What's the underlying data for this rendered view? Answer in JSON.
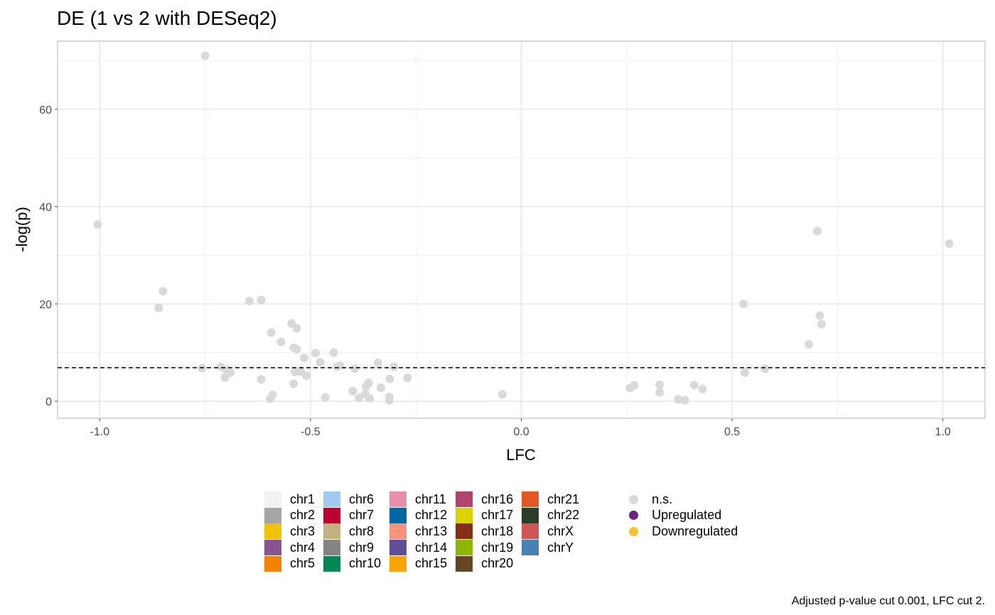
{
  "chart_data": {
    "type": "scatter",
    "title": "DE (1 vs 2 with DESeq2)",
    "xlabel": "LFC",
    "ylabel": "-log(p)",
    "xlim": [
      -1.1,
      1.1
    ],
    "ylim": [
      -3.5,
      74
    ],
    "x_ticks": [
      -1.0,
      -0.5,
      0.0,
      0.5,
      1.0
    ],
    "x_tick_labels": [
      "-1.0",
      "-0.5",
      "0.0",
      "0.5",
      "1.0"
    ],
    "y_ticks": [
      0,
      20,
      40,
      60
    ],
    "y_tick_labels": [
      "0",
      "20",
      "40",
      "60"
    ],
    "threshold_y": 6.9,
    "point_color": "#d9d9d9",
    "points": [
      {
        "x": -0.75,
        "y": 71.0
      },
      {
        "x": -1.005,
        "y": 36.3
      },
      {
        "x": -0.85,
        "y": 22.6
      },
      {
        "x": -0.86,
        "y": 19.2
      },
      {
        "x": -0.645,
        "y": 20.6
      },
      {
        "x": -0.617,
        "y": 20.8
      },
      {
        "x": -0.545,
        "y": 16.0
      },
      {
        "x": -0.533,
        "y": 15.0
      },
      {
        "x": -0.593,
        "y": 14.1
      },
      {
        "x": -0.57,
        "y": 12.2
      },
      {
        "x": -0.54,
        "y": 11.0
      },
      {
        "x": -0.533,
        "y": 10.7
      },
      {
        "x": -0.488,
        "y": 9.9
      },
      {
        "x": -0.445,
        "y": 10.0
      },
      {
        "x": -0.515,
        "y": 8.9
      },
      {
        "x": -0.477,
        "y": 8.0
      },
      {
        "x": -0.34,
        "y": 7.9
      },
      {
        "x": -0.43,
        "y": 7.3
      },
      {
        "x": -0.437,
        "y": 7.1
      },
      {
        "x": -0.395,
        "y": 6.7
      },
      {
        "x": -0.302,
        "y": 7.1
      },
      {
        "x": -0.757,
        "y": 6.8
      },
      {
        "x": -0.713,
        "y": 7.1
      },
      {
        "x": -0.7,
        "y": 6.5
      },
      {
        "x": -0.69,
        "y": 5.9
      },
      {
        "x": -0.703,
        "y": 4.9
      },
      {
        "x": -0.537,
        "y": 6.0
      },
      {
        "x": -0.523,
        "y": 6.1
      },
      {
        "x": -0.51,
        "y": 5.3
      },
      {
        "x": -0.27,
        "y": 4.8
      },
      {
        "x": -0.312,
        "y": 4.6
      },
      {
        "x": -0.617,
        "y": 4.5
      },
      {
        "x": -0.54,
        "y": 3.6
      },
      {
        "x": -0.362,
        "y": 3.8
      },
      {
        "x": -0.368,
        "y": 3.1
      },
      {
        "x": -0.333,
        "y": 2.8
      },
      {
        "x": -0.4,
        "y": 2.1
      },
      {
        "x": -0.37,
        "y": 1.5
      },
      {
        "x": -0.59,
        "y": 1.3
      },
      {
        "x": -0.596,
        "y": 0.5
      },
      {
        "x": -0.465,
        "y": 0.8
      },
      {
        "x": -0.385,
        "y": 0.7
      },
      {
        "x": -0.36,
        "y": 0.6
      },
      {
        "x": -0.313,
        "y": 0.9
      },
      {
        "x": -0.313,
        "y": 0.2
      },
      {
        "x": -0.045,
        "y": 1.4
      },
      {
        "x": 0.258,
        "y": 2.7
      },
      {
        "x": 0.268,
        "y": 3.3
      },
      {
        "x": 0.328,
        "y": 3.4
      },
      {
        "x": 0.328,
        "y": 1.8
      },
      {
        "x": 0.41,
        "y": 3.3
      },
      {
        "x": 0.43,
        "y": 2.5
      },
      {
        "x": 0.372,
        "y": 0.4
      },
      {
        "x": 0.388,
        "y": 0.2
      },
      {
        "x": 0.527,
        "y": 20.0
      },
      {
        "x": 0.53,
        "y": 5.9
      },
      {
        "x": 0.578,
        "y": 6.7
      },
      {
        "x": 0.702,
        "y": 35.0
      },
      {
        "x": 1.015,
        "y": 32.4
      },
      {
        "x": 0.708,
        "y": 17.6
      },
      {
        "x": 0.712,
        "y": 15.8
      },
      {
        "x": 0.682,
        "y": 11.7
      }
    ]
  },
  "legend": {
    "chromosomes": [
      [
        {
          "label": "chr1",
          "color": "#f2f2f2"
        },
        {
          "label": "chr2",
          "color": "#a6a6a6"
        },
        {
          "label": "chr3",
          "color": "#f2c200"
        },
        {
          "label": "chr4",
          "color": "#875692"
        },
        {
          "label": "chr5",
          "color": "#f38400"
        }
      ],
      [
        {
          "label": "chr6",
          "color": "#a1caf1"
        },
        {
          "label": "chr7",
          "color": "#be0032"
        },
        {
          "label": "chr8",
          "color": "#c2b280"
        },
        {
          "label": "chr9",
          "color": "#848482"
        },
        {
          "label": "chr10",
          "color": "#008856"
        }
      ],
      [
        {
          "label": "chr11",
          "color": "#e68fac"
        },
        {
          "label": "chr12",
          "color": "#0067a5"
        },
        {
          "label": "chr13",
          "color": "#f99379"
        },
        {
          "label": "chr14",
          "color": "#604e97"
        },
        {
          "label": "chr15",
          "color": "#f6a600"
        }
      ],
      [
        {
          "label": "chr16",
          "color": "#b3446c"
        },
        {
          "label": "chr17",
          "color": "#dcd300"
        },
        {
          "label": "chr18",
          "color": "#882d17"
        },
        {
          "label": "chr19",
          "color": "#8db600"
        },
        {
          "label": "chr20",
          "color": "#654522"
        }
      ],
      [
        {
          "label": "chr21",
          "color": "#e25822"
        },
        {
          "label": "chr22",
          "color": "#2b3d26"
        },
        {
          "label": "chrX",
          "color": "#d35454"
        },
        {
          "label": "chrY",
          "color": "#4682b4"
        }
      ]
    ],
    "significance": [
      {
        "label": "n.s.",
        "color": "#d9d9d9"
      },
      {
        "label": "Upregulated",
        "color": "#6a2383"
      },
      {
        "label": "Downregulated",
        "color": "#fbc02d"
      }
    ]
  },
  "caption": "Adjusted p-value cut 0.001, LFC cut 2."
}
